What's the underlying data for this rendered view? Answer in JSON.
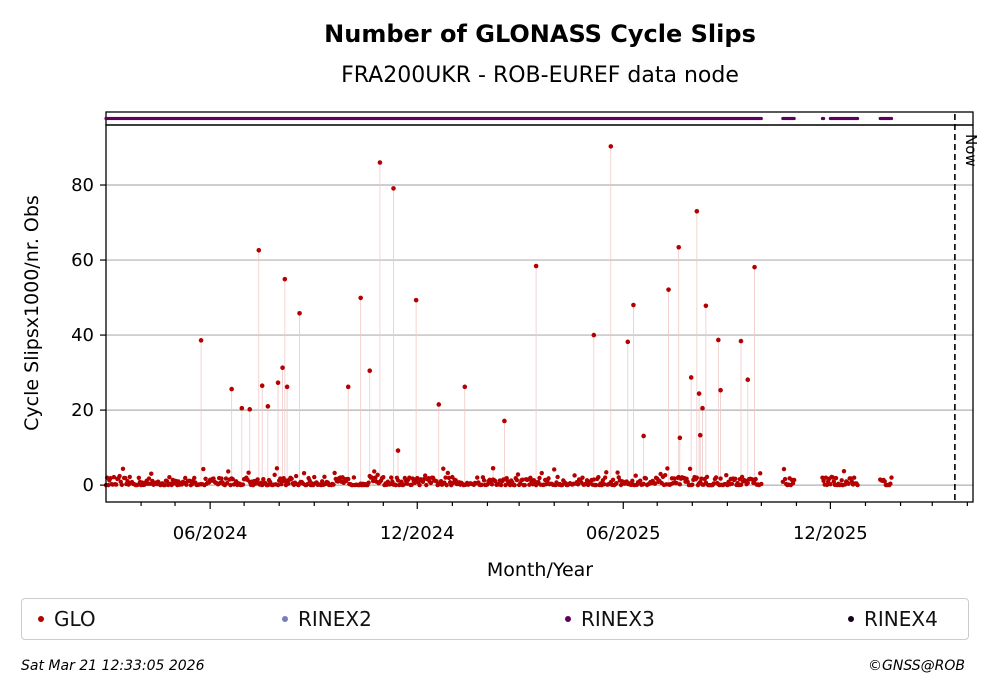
{
  "chart_data": {
    "type": "scatter",
    "title": "Number of GLONASS Cycle Slips",
    "subtitle": "FRA200UKR - ROB-EUREF data node",
    "xlabel": "Month/Year",
    "ylabel": "Cycle Slipsx1000/nr. Obs",
    "x_ticks": [
      "06/2024",
      "12/2024",
      "06/2025",
      "12/2025"
    ],
    "y_ticks": [
      0,
      20,
      40,
      60,
      80
    ],
    "ylim": [
      -4.5,
      96
    ],
    "xlim": [
      "2024-03-01",
      "2026-04-06"
    ],
    "grid": "horizontal",
    "now_label": "Now",
    "now_date": "2026-03-21",
    "series": [
      {
        "name": "GLO",
        "color": "#b40000",
        "points": [
          [
            "2024-05-24",
            38.6
          ],
          [
            "2024-06-20",
            25.6
          ],
          [
            "2024-06-29",
            20.5
          ],
          [
            "2024-07-06",
            20.2
          ],
          [
            "2024-07-14",
            62.6
          ],
          [
            "2024-07-17",
            26.5
          ],
          [
            "2024-07-22",
            21.0
          ],
          [
            "2024-07-31",
            27.3
          ],
          [
            "2024-08-04",
            31.3
          ],
          [
            "2024-08-06",
            54.9
          ],
          [
            "2024-08-08",
            26.2
          ],
          [
            "2024-08-19",
            45.8
          ],
          [
            "2024-10-01",
            26.2
          ],
          [
            "2024-10-12",
            49.9
          ],
          [
            "2024-10-20",
            30.5
          ],
          [
            "2024-10-29",
            86.0
          ],
          [
            "2024-11-10",
            79.1
          ],
          [
            "2024-11-14",
            9.2
          ],
          [
            "2024-11-30",
            49.3
          ],
          [
            "2024-12-20",
            21.5
          ],
          [
            "2025-01-12",
            26.2
          ],
          [
            "2025-02-06",
            4.5
          ],
          [
            "2025-02-16",
            17.1
          ],
          [
            "2025-03-16",
            58.4
          ],
          [
            "2025-05-06",
            40.0
          ],
          [
            "2025-05-21",
            90.3
          ],
          [
            "2025-06-05",
            38.2
          ],
          [
            "2025-06-10",
            48.0
          ],
          [
            "2025-06-19",
            13.1
          ],
          [
            "2025-07-11",
            52.1
          ],
          [
            "2025-07-20",
            63.4
          ],
          [
            "2025-07-21",
            12.6
          ],
          [
            "2025-07-31",
            28.7
          ],
          [
            "2025-08-05",
            73.0
          ],
          [
            "2025-08-07",
            24.4
          ],
          [
            "2025-08-08",
            13.3
          ],
          [
            "2025-08-10",
            20.5
          ],
          [
            "2025-08-13",
            47.8
          ],
          [
            "2025-08-24",
            38.7
          ],
          [
            "2025-08-26",
            25.3
          ],
          [
            "2025-09-13",
            38.4
          ],
          [
            "2025-09-19",
            28.1
          ],
          [
            "2025-09-25",
            58.1
          ]
        ],
        "baseline_coverage": [
          [
            "2024-03-01",
            "2025-10-01"
          ],
          [
            "2025-10-20",
            "2025-10-30"
          ],
          [
            "2025-11-24",
            "2025-12-25"
          ],
          [
            "2026-01-14",
            "2026-01-24"
          ]
        ]
      },
      {
        "name": "RINEX2",
        "color": "#7b7bbf"
      },
      {
        "name": "RINEX3",
        "color": "#60005e",
        "coverage": [
          [
            "2024-03-01",
            "2025-10-01"
          ],
          [
            "2025-10-20",
            "2025-10-30"
          ],
          [
            "2025-11-24",
            "2025-11-25"
          ],
          [
            "2025-12-01",
            "2025-12-25"
          ],
          [
            "2026-01-14",
            "2026-01-24"
          ]
        ]
      },
      {
        "name": "RINEX4",
        "color": "#1a0020"
      }
    ]
  },
  "footer": {
    "timestamp": "Sat Mar 21 12:33:05 2026",
    "credit": "©GNSS@ROB"
  }
}
